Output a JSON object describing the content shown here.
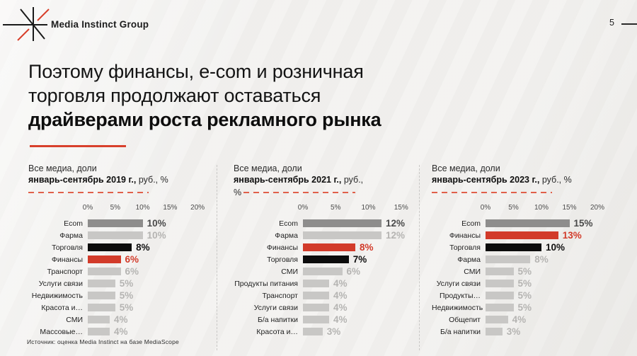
{
  "brand": {
    "name": "Media Instinct Group"
  },
  "page_number": "5",
  "title": {
    "line1": "Поэтому финансы, e-com и розничная",
    "line2": "торговля продолжают оставаться",
    "line3_bold": "драйверами роста рекламного рынка"
  },
  "source_note": "Источник: оценка Media Instinct на базе MediaScope",
  "colors": {
    "accent_red": "#d23b2a",
    "bar_black": "#0c0c0c",
    "bar_dark_gray": "#8e8d8c",
    "bar_light_gray": "#c8c7c5",
    "value_light_gray": "#b5b4b2",
    "background": "#f1f0ee"
  },
  "chart_data": [
    {
      "type": "bar",
      "orientation": "horizontal",
      "title_line1": "Все медиа, доли",
      "title_bold": "январь-сентябрь 2019 г.,",
      "title_suffix": " руб., %",
      "title_wrap_prefix": "",
      "ticks": [
        "0%",
        "5%",
        "10%",
        "15%",
        "20%"
      ],
      "axis_max": 20,
      "grid": false,
      "categories": [
        "Ecom",
        "Фарма",
        "Торговля",
        "Финансы",
        "Транспорт",
        "Услуги связи",
        "Недвижимость",
        "Красота и…",
        "СМИ",
        "Массовые…"
      ],
      "values": [
        10,
        10,
        8,
        6,
        6,
        5,
        5,
        5,
        4,
        4
      ],
      "value_labels": [
        "10%",
        "10%",
        "8%",
        "6%",
        "6%",
        "5%",
        "5%",
        "5%",
        "4%",
        "4%"
      ],
      "emphasis": [
        "dark",
        "light",
        "black",
        "red",
        "light",
        "light",
        "light",
        "light",
        "light",
        "light"
      ]
    },
    {
      "type": "bar",
      "orientation": "horizontal",
      "title_line1": "Все медиа, доли",
      "title_bold": "январь-сентябрь 2021 г.,",
      "title_suffix": " руб.,",
      "title_wrap_prefix": "%",
      "ticks": [
        "0%",
        "5%",
        "10%",
        "15%"
      ],
      "axis_max": 15,
      "grid": false,
      "categories": [
        "Ecom",
        "Фарма",
        "Финансы",
        "Торговля",
        "СМИ",
        "Продукты питания",
        "Транспорт",
        "Услуги связи",
        "Б/а напитки",
        "Красота и…"
      ],
      "values": [
        12,
        12,
        8,
        7,
        6,
        4,
        4,
        4,
        4,
        3
      ],
      "value_labels": [
        "12%",
        "12%",
        "8%",
        "7%",
        "6%",
        "4%",
        "4%",
        "4%",
        "4%",
        "3%"
      ],
      "emphasis": [
        "dark",
        "light",
        "red",
        "black",
        "light",
        "light",
        "light",
        "light",
        "light",
        "light"
      ]
    },
    {
      "type": "bar",
      "orientation": "horizontal",
      "title_line1": "Все медиа, доли",
      "title_bold": "январь-сентябрь 2023 г.,",
      "title_suffix": " руб., %",
      "title_wrap_prefix": "",
      "ticks": [
        "0%",
        "5%",
        "10%",
        "15%",
        "20%"
      ],
      "axis_max": 20,
      "grid": false,
      "categories": [
        "Ecom",
        "Финансы",
        "Торговля",
        "Фарма",
        "СМИ",
        "Услуги связи",
        "Продукты…",
        "Недвижимость",
        "Общепит",
        "Б/а напитки"
      ],
      "values": [
        15,
        13,
        10,
        8,
        5,
        5,
        5,
        5,
        4,
        3
      ],
      "value_labels": [
        "15%",
        "13%",
        "10%",
        "8%",
        "5%",
        "5%",
        "5%",
        "5%",
        "4%",
        "3%"
      ],
      "emphasis": [
        "dark",
        "red",
        "black",
        "light",
        "light",
        "light",
        "light",
        "light",
        "light",
        "light"
      ]
    }
  ]
}
